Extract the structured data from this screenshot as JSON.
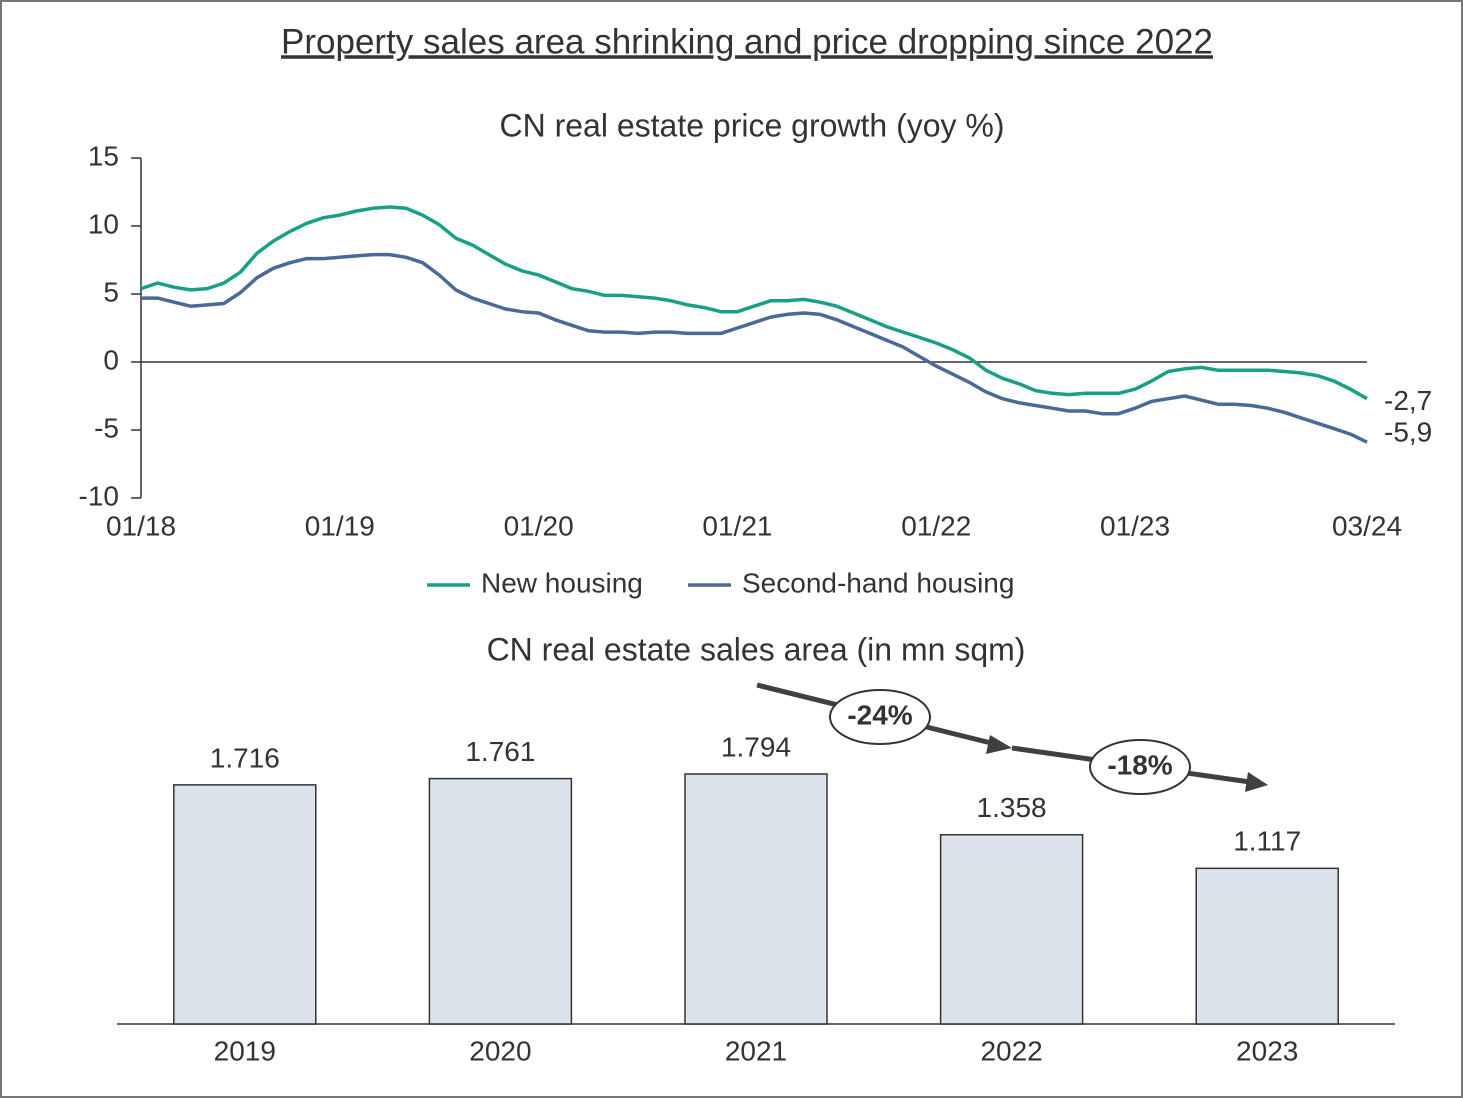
{
  "title": "Property sales area shrinking and price dropping since 2022",
  "chart_data": [
    {
      "type": "line",
      "title": "CN real estate price growth (yoy %)",
      "categories": [
        "01/18",
        null,
        null,
        null,
        null,
        null,
        null,
        null,
        null,
        null,
        null,
        null,
        "01/19",
        null,
        null,
        null,
        null,
        null,
        null,
        null,
        null,
        null,
        null,
        null,
        "01/20",
        null,
        null,
        null,
        null,
        null,
        null,
        null,
        null,
        null,
        null,
        null,
        "01/21",
        null,
        null,
        null,
        null,
        null,
        null,
        null,
        null,
        null,
        null,
        null,
        "01/22",
        null,
        null,
        null,
        null,
        null,
        null,
        null,
        null,
        null,
        null,
        null,
        "01/23",
        null,
        null,
        null,
        null,
        null,
        null,
        null,
        null,
        null,
        null,
        null,
        null,
        null,
        "03/24"
      ],
      "series": [
        {
          "name": "New housing",
          "color": "#17a085",
          "values": [
            5.4,
            5.8,
            5.5,
            5.3,
            5.4,
            5.8,
            6.6,
            8.0,
            8.9,
            9.6,
            10.2,
            10.6,
            10.8,
            11.1,
            11.3,
            11.4,
            11.3,
            10.8,
            10.1,
            9.1,
            8.6,
            7.9,
            7.2,
            6.7,
            6.4,
            5.9,
            5.4,
            5.2,
            4.9,
            4.9,
            4.8,
            4.7,
            4.5,
            4.2,
            4.0,
            3.7,
            3.7,
            4.1,
            4.5,
            4.5,
            4.6,
            4.4,
            4.1,
            3.6,
            3.1,
            2.6,
            2.2,
            1.8,
            1.4,
            0.9,
            0.3,
            -0.6,
            -1.2,
            -1.6,
            -2.1,
            -2.3,
            -2.4,
            -2.3,
            -2.3,
            -2.3,
            -2.0,
            -1.4,
            -0.7,
            -0.5,
            -0.4,
            -0.6,
            -0.6,
            -0.6,
            -0.6,
            -0.7,
            -0.8,
            -1.0,
            -1.4,
            -2.0,
            -2.7
          ],
          "end_label": "-2,7"
        },
        {
          "name": "Second-hand housing",
          "color": "#4a6898",
          "values": [
            4.7,
            4.7,
            4.4,
            4.1,
            4.2,
            4.3,
            5.1,
            6.2,
            6.9,
            7.3,
            7.6,
            7.6,
            7.7,
            7.8,
            7.9,
            7.9,
            7.7,
            7.3,
            6.4,
            5.3,
            4.7,
            4.3,
            3.9,
            3.7,
            3.6,
            3.1,
            2.7,
            2.3,
            2.2,
            2.2,
            2.1,
            2.2,
            2.2,
            2.1,
            2.1,
            2.1,
            2.5,
            2.9,
            3.3,
            3.5,
            3.6,
            3.5,
            3.1,
            2.6,
            2.1,
            1.6,
            1.1,
            0.4,
            -0.3,
            -0.9,
            -1.5,
            -2.2,
            -2.7,
            -3.0,
            -3.2,
            -3.4,
            -3.6,
            -3.6,
            -3.8,
            -3.8,
            -3.4,
            -2.9,
            -2.7,
            -2.5,
            -2.8,
            -3.1,
            -3.1,
            -3.2,
            -3.4,
            -3.7,
            -4.1,
            -4.5,
            -4.9,
            -5.3,
            -5.9
          ],
          "end_label": "-5,9"
        }
      ],
      "ylim": [
        -10,
        15
      ],
      "yticks": [
        15,
        10,
        5,
        0,
        -5,
        -10
      ],
      "legend": "bottom"
    },
    {
      "type": "bar",
      "title": "CN real estate sales area (in mn sqm)",
      "categories": [
        "2019",
        "2020",
        "2021",
        "2022",
        "2023"
      ],
      "values": [
        1.716,
        1.761,
        1.794,
        1.358,
        1.117
      ],
      "color": "#dde3ed",
      "annotations": [
        "-24%",
        "-18%"
      ]
    }
  ]
}
